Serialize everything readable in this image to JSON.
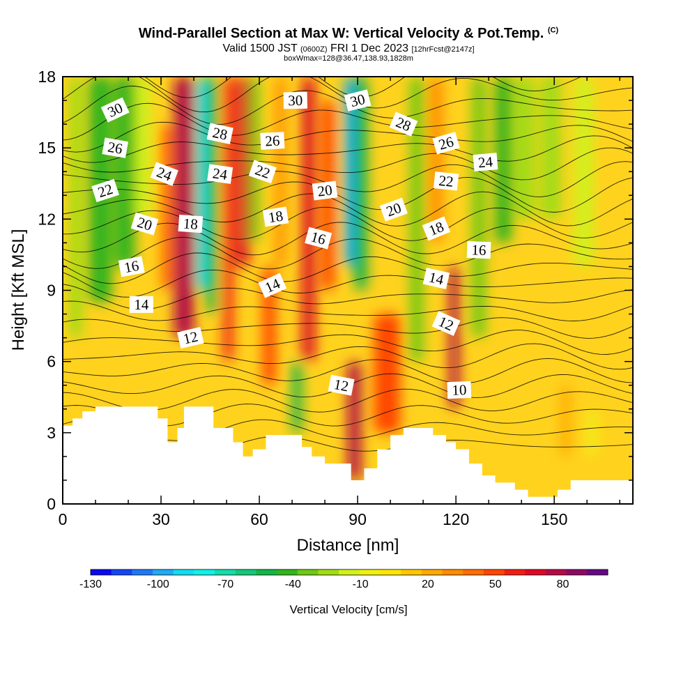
{
  "header": {
    "title_main": "Wind-Parallel Section at Max W: Vertical Velocity & Pot.Temp.",
    "title_mark": "(C)",
    "valid_prefix": "Valid 1500 JST",
    "valid_utc": "(0600Z)",
    "valid_date": "FRI 1 Dec 2023",
    "fcst": "[12hrFcst@2147z]",
    "boxinfo": "boxWmax=128@36.47,138.93,1828m"
  },
  "colorbar": {
    "title": "Vertical Velocity [cm/s]",
    "colors": [
      "#0a0af0",
      "#1446f5",
      "#1e78f5",
      "#1eaaf5",
      "#14dcf0",
      "#14f0e6",
      "#14dcaa",
      "#14c878",
      "#14b446",
      "#32b41e",
      "#6ec814",
      "#a0dc14",
      "#d2f01e",
      "#f0f014",
      "#ffe600",
      "#ffc800",
      "#ffaa00",
      "#ff8c00",
      "#ff6e00",
      "#ff4600",
      "#f01e14",
      "#dc0a28",
      "#b40a46",
      "#8c0a64",
      "#640a82"
    ],
    "ticks": [
      "-130",
      "-100",
      "-70",
      "-40",
      "-10",
      "20",
      "50",
      "80"
    ]
  },
  "chart_data": {
    "type": "heatmap",
    "title": "Wind-Parallel Section at Max W: Vertical Velocity & Pot.Temp.",
    "xlabel": "Distance [nm]",
    "ylabel": "Height [Kft MSL]",
    "xlim": [
      0,
      174
    ],
    "ylim": [
      0,
      18
    ],
    "xticks": [
      "0",
      "30",
      "60",
      "90",
      "120",
      "150"
    ],
    "yticks": [
      "0",
      "3",
      "6",
      "9",
      "12",
      "15",
      "18"
    ],
    "colorbar_label": "Vertical Velocity [cm/s]",
    "colorbar_range": [
      -130,
      100
    ],
    "background": "#ffd21e",
    "bands": [
      {
        "x": 2,
        "w": 4,
        "y0": 7,
        "y1": 18,
        "v": -25
      },
      {
        "x": 8,
        "w": 7,
        "y0": 8.5,
        "y1": 18,
        "v": -45
      },
      {
        "x": 16,
        "w": 6,
        "y0": 10,
        "y1": 18,
        "v": -40
      },
      {
        "x": 22,
        "w": 5,
        "y0": 12,
        "y1": 18,
        "v": -15
      },
      {
        "x": 34,
        "w": 6,
        "y0": 7,
        "y1": 18,
        "v": 75
      },
      {
        "x": 30,
        "w": 4,
        "y0": 9,
        "y1": 16,
        "v": 40
      },
      {
        "x": 41,
        "w": 3,
        "y0": 9,
        "y1": 18,
        "v": -85
      },
      {
        "x": 44,
        "w": 3,
        "y0": 8,
        "y1": 18,
        "v": -55
      },
      {
        "x": 49,
        "w": 3,
        "y0": 6,
        "y1": 18,
        "v": 55
      },
      {
        "x": 53,
        "w": 4,
        "y0": 10,
        "y1": 18,
        "v": 65
      },
      {
        "x": 57,
        "w": 3,
        "y0": 11,
        "y1": 18,
        "v": -30
      },
      {
        "x": 61,
        "w": 4,
        "y0": 5,
        "y1": 10,
        "v": 45
      },
      {
        "x": 70,
        "w": 3,
        "y0": 3,
        "y1": 6,
        "v": -55
      },
      {
        "x": 65,
        "w": 3,
        "y0": 10,
        "y1": 18,
        "v": 30
      },
      {
        "x": 73,
        "w": 4,
        "y0": 6,
        "y1": 18,
        "v": 65
      },
      {
        "x": 79,
        "w": 4,
        "y0": 9,
        "y1": 17,
        "v": 45
      },
      {
        "x": 86,
        "w": 3,
        "y0": 10,
        "y1": 18,
        "v": -95
      },
      {
        "x": 89,
        "w": 4,
        "y0": 9,
        "y1": 18,
        "v": -55
      },
      {
        "x": 87,
        "w": 4,
        "y0": 1,
        "y1": 6,
        "v": 75
      },
      {
        "x": 95,
        "w": 8,
        "y0": 3,
        "y1": 8,
        "v": 50
      },
      {
        "x": 106,
        "w": 4,
        "y0": 6,
        "y1": 18,
        "v": -35
      },
      {
        "x": 112,
        "w": 4,
        "y0": 11,
        "y1": 18,
        "v": 30
      },
      {
        "x": 118,
        "w": 3,
        "y0": 4,
        "y1": 10,
        "v": 75
      },
      {
        "x": 125,
        "w": 4,
        "y0": 7,
        "y1": 18,
        "v": -30
      },
      {
        "x": 132,
        "w": 5,
        "y0": 11,
        "y1": 18,
        "v": -40
      },
      {
        "x": 138,
        "w": 6,
        "y0": 12,
        "y1": 18,
        "v": -20
      },
      {
        "x": 146,
        "w": 6,
        "y0": 12,
        "y1": 18,
        "v": -25
      },
      {
        "x": 156,
        "w": 6,
        "y0": 10,
        "y1": 18,
        "v": -15
      },
      {
        "x": 152,
        "w": 3,
        "y0": 2,
        "y1": 5,
        "v": 25
      },
      {
        "x": 160,
        "w": 3,
        "y0": 2,
        "y1": 4,
        "v": -5
      }
    ],
    "terrain": [
      [
        0,
        3.3
      ],
      [
        3,
        3.6
      ],
      [
        6,
        3.9
      ],
      [
        10,
        4.1
      ],
      [
        26,
        4.1
      ],
      [
        29,
        3.6
      ],
      [
        32,
        2.6
      ],
      [
        35,
        3.2
      ],
      [
        37,
        4.1
      ],
      [
        43,
        4.1
      ],
      [
        46,
        3.2
      ],
      [
        50,
        3.2
      ],
      [
        52,
        2.6
      ],
      [
        55,
        2.0
      ],
      [
        58,
        2.3
      ],
      [
        62,
        2.9
      ],
      [
        70,
        2.9
      ],
      [
        73,
        2.4
      ],
      [
        76,
        2.0
      ],
      [
        80,
        1.7
      ],
      [
        86,
        1.7
      ],
      [
        88,
        1.0
      ],
      [
        92,
        1.5
      ],
      [
        96,
        2.3
      ],
      [
        100,
        2.9
      ],
      [
        104,
        3.2
      ],
      [
        110,
        3.2
      ],
      [
        113,
        2.9
      ],
      [
        117,
        2.6
      ],
      [
        120,
        2.3
      ],
      [
        124,
        1.7
      ],
      [
        128,
        1.2
      ],
      [
        132,
        0.9
      ],
      [
        138,
        0.6
      ],
      [
        142,
        0.3
      ],
      [
        148,
        0.3
      ],
      [
        151,
        0.6
      ],
      [
        155,
        1.0
      ],
      [
        174,
        1.0
      ]
    ],
    "theta_labels": [
      {
        "text": "30",
        "x": 16,
        "y": 16.6
      },
      {
        "text": "28",
        "x": 48,
        "y": 15.6
      },
      {
        "text": "30",
        "x": 71,
        "y": 17.0
      },
      {
        "text": "30",
        "x": 90,
        "y": 17.0
      },
      {
        "text": "28",
        "x": 104,
        "y": 16.0
      },
      {
        "text": "26",
        "x": 16,
        "y": 15.0
      },
      {
        "text": "26",
        "x": 64,
        "y": 15.3
      },
      {
        "text": "26",
        "x": 117,
        "y": 15.2
      },
      {
        "text": "24",
        "x": 31,
        "y": 13.9
      },
      {
        "text": "24",
        "x": 48,
        "y": 13.9
      },
      {
        "text": "24",
        "x": 129,
        "y": 14.4
      },
      {
        "text": "22",
        "x": 13,
        "y": 13.2
      },
      {
        "text": "22",
        "x": 61,
        "y": 14.0
      },
      {
        "text": "22",
        "x": 117,
        "y": 13.6
      },
      {
        "text": "20",
        "x": 80,
        "y": 13.2
      },
      {
        "text": "20",
        "x": 101,
        "y": 12.4
      },
      {
        "text": "20",
        "x": 25,
        "y": 11.8
      },
      {
        "text": "18",
        "x": 39,
        "y": 11.8
      },
      {
        "text": "18",
        "x": 65,
        "y": 12.1
      },
      {
        "text": "18",
        "x": 114,
        "y": 11.6
      },
      {
        "text": "16",
        "x": 78,
        "y": 11.2
      },
      {
        "text": "16",
        "x": 127,
        "y": 10.7
      },
      {
        "text": "16",
        "x": 21,
        "y": 10.0
      },
      {
        "text": "14",
        "x": 64,
        "y": 9.2
      },
      {
        "text": "14",
        "x": 114,
        "y": 9.5
      },
      {
        "text": "14",
        "x": 24,
        "y": 8.4
      },
      {
        "text": "12",
        "x": 39,
        "y": 7.0
      },
      {
        "text": "12",
        "x": 117,
        "y": 7.6
      },
      {
        "text": "12",
        "x": 85,
        "y": 5.0
      },
      {
        "text": "10",
        "x": 121,
        "y": 4.8
      }
    ]
  }
}
